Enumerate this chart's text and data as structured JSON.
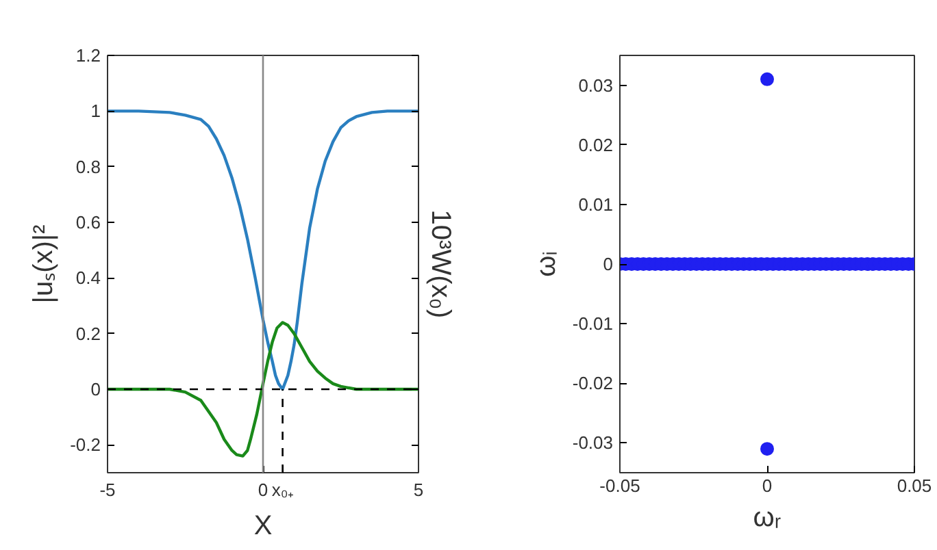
{
  "chart_data": [
    {
      "type": "line",
      "xlabel": "X",
      "ylabel": "|uₛ(x)|²",
      "y2label": "10³W(x₀)",
      "xlim": [
        -5,
        5
      ],
      "ylim": [
        -0.3,
        1.2
      ],
      "xticks": [
        -5,
        0,
        {
          "value": 0.63,
          "label": "x₀₊"
        },
        5
      ],
      "yticks": [
        -0.2,
        0,
        0.2,
        0.4,
        0.6,
        0.8,
        1,
        1.2
      ],
      "grid": false,
      "line_style": "solid",
      "marker": "none",
      "ref_lines": [
        {
          "axis": "y",
          "value": 0,
          "color": "#000000",
          "line_style": "dashed"
        },
        {
          "axis": "x",
          "value": 0,
          "color": "#888888",
          "line_style": "solid"
        }
      ],
      "series": [
        {
          "color": "#2a7fc0",
          "x": [
            -5,
            -4,
            -3,
            -2.5,
            -2,
            -1.75,
            -1.5,
            -1.25,
            -1,
            -0.75,
            -0.5,
            -0.25,
            0,
            0.15,
            0.3,
            0.4,
            0.5,
            0.63,
            0.8,
            0.9,
            1,
            1.1,
            1.25,
            1.5,
            1.75,
            2,
            2.25,
            2.5,
            2.75,
            3,
            3.5,
            4,
            5
          ],
          "values": [
            1,
            1,
            0.995,
            0.985,
            0.97,
            0.945,
            0.9,
            0.84,
            0.76,
            0.66,
            0.54,
            0.4,
            0.25,
            0.17,
            0.1,
            0.05,
            0.02,
            0,
            0.05,
            0.1,
            0.16,
            0.24,
            0.38,
            0.58,
            0.72,
            0.82,
            0.89,
            0.94,
            0.965,
            0.98,
            0.995,
            1,
            1
          ]
        },
        {
          "color": "#1a8a1a",
          "x": [
            -5,
            -3,
            -2.5,
            -2,
            -1.75,
            -1.5,
            -1.25,
            -1,
            -0.85,
            -0.65,
            -0.5,
            -0.4,
            -0.2,
            0,
            0.15,
            0.3,
            0.45,
            0.63,
            0.8,
            1,
            1.25,
            1.5,
            1.75,
            2,
            2.25,
            2.5,
            3,
            5
          ],
          "values": [
            0,
            0,
            -0.01,
            -0.04,
            -0.08,
            -0.12,
            -0.18,
            -0.22,
            -0.235,
            -0.24,
            -0.22,
            -0.18,
            -0.09,
            0.02,
            0.1,
            0.17,
            0.22,
            0.24,
            0.23,
            0.2,
            0.15,
            0.1,
            0.065,
            0.04,
            0.02,
            0.01,
            0,
            0
          ]
        },
        {
          "color": "#000000",
          "line_style": "dashed",
          "x": [
            0.63,
            0.63
          ],
          "values": [
            -0.3,
            0
          ]
        }
      ]
    },
    {
      "type": "scatter",
      "xlabel": "ωᵣ",
      "ylabel": "ωᵢ",
      "xlim": [
        -0.05,
        0.05
      ],
      "ylim": [
        -0.035,
        0.035
      ],
      "xticks": [
        -0.05,
        0,
        0.05
      ],
      "yticks": [
        -0.03,
        -0.02,
        -0.01,
        0,
        0.01,
        0.02,
        0.03
      ],
      "grid": false,
      "marker": "circle",
      "series": [
        {
          "color": "#2020f0",
          "x": [
            -0.05,
            -0.048,
            -0.046,
            -0.044,
            -0.042,
            -0.04,
            -0.038,
            -0.036,
            -0.034,
            -0.032,
            -0.03,
            -0.028,
            -0.026,
            -0.024,
            -0.022,
            -0.02,
            -0.018,
            -0.016,
            -0.014,
            -0.012,
            -0.01,
            -0.008,
            -0.006,
            -0.004,
            -0.002,
            0,
            0.002,
            0.004,
            0.006,
            0.008,
            0.01,
            0.012,
            0.014,
            0.016,
            0.018,
            0.02,
            0.022,
            0.024,
            0.026,
            0.028,
            0.03,
            0.032,
            0.034,
            0.036,
            0.038,
            0.04,
            0.042,
            0.044,
            0.046,
            0.048,
            0.05
          ],
          "values": [
            0,
            0,
            0,
            0,
            0,
            0,
            0,
            0,
            0,
            0,
            0,
            0,
            0,
            0,
            0,
            0,
            0,
            0,
            0,
            0,
            0,
            0,
            0,
            0,
            0,
            0,
            0,
            0,
            0,
            0,
            0,
            0,
            0,
            0,
            0,
            0,
            0,
            0,
            0,
            0,
            0,
            0,
            0,
            0,
            0,
            0,
            0,
            0,
            0,
            0,
            0
          ]
        },
        {
          "color": "#2020f0",
          "x": [
            0,
            0
          ],
          "values": [
            0.031,
            -0.031
          ]
        }
      ]
    }
  ]
}
